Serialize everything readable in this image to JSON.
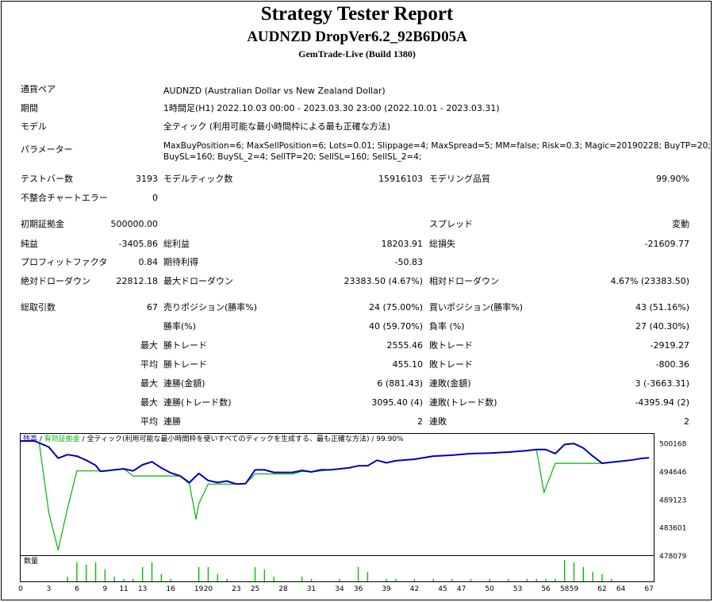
{
  "header": {
    "title": "Strategy Tester Report",
    "subtitle": "AUDNZD DropVer6.2_92B6D05A",
    "server": "GemTrade-Live (Build 1380)"
  },
  "info": {
    "symbol_label": "通貨ペア",
    "symbol_value": "AUDNZD (Australian Dollar vs New Zealand Dollar)",
    "period_label": "期間",
    "period_value": "1時間足(H1) 2022.10.03 00:00 - 2023.03.30 23:00 (2022.10.01 - 2023.03.31)",
    "model_label": "モデル",
    "model_value": "全ティック (利用可能な最小時間枠による最も正確な方法)",
    "params_label": "パラメーター",
    "params_line1": "MaxBuyPosition=6; MaxSellPosition=6; Lots=0.01; Slippage=4; MaxSpread=5; MM=false; Risk=0.3; Magic=20190228; BuyTP=20;",
    "params_line2": "BuySL=160; BuySL_2=4; SellTP=20; SellSL=160; SellSL_2=4;"
  },
  "stats": {
    "bars_label": "テストバー数",
    "bars_value": "3193",
    "ticks_label": "モデルティック数",
    "ticks_value": "15916103",
    "quality_label": "モデリング品質",
    "quality_value": "99.90%",
    "errors_label": "不整合チャートエラー",
    "errors_value": "0",
    "deposit_label": "初期証拠金",
    "deposit_value": "500000.00",
    "spread_label": "スプレッド",
    "spread_value": "変動",
    "net_label": "純益",
    "net_value": "-3405.86",
    "gross_profit_label": "総利益",
    "gross_profit_value": "18203.91",
    "gross_loss_label": "総損失",
    "gross_loss_value": "-21609.77",
    "pf_label": "プロフィットファクタ",
    "pf_value": "0.84",
    "expected_label": "期待利得",
    "expected_value": "-50.83",
    "abs_dd_label": "絶対ドローダウン",
    "abs_dd_value": "22812.18",
    "max_dd_label": "最大ドローダウン",
    "max_dd_value": "23383.50 (4.67%)",
    "rel_dd_label": "相対ドローダウン",
    "rel_dd_value": "4.67% (23383.50)",
    "trades_label": "総取引数",
    "trades_value": "67",
    "short_label": "売りポジション(勝率%)",
    "short_value": "24 (75.00%)",
    "long_label": "買いポジション(勝率%)",
    "long_value": "43 (51.16%)",
    "win_label": "勝率(%)",
    "win_value": "40 (59.70%)",
    "loss_label": "負率 (%)",
    "loss_value": "27 (40.30%)",
    "max_word": "最大",
    "avg_word": "平均",
    "largest_win_label": "勝トレード",
    "largest_win_value": "2555.46",
    "largest_loss_label": "敗トレード",
    "largest_loss_value": "-2919.27",
    "avg_win_label": "勝トレード",
    "avg_win_value": "455.10",
    "avg_loss_label": "敗トレード",
    "avg_loss_value": "-800.36",
    "max_consec_wins_label": "連勝(金額)",
    "max_consec_wins_value": "6 (881.43)",
    "max_consec_losses_label": "連敗(金額)",
    "max_consec_losses_value": "3 (-3663.31)",
    "max_consec_profit_label": "連勝(トレード数)",
    "max_consec_profit_value": "3095.40 (4)",
    "max_consec_loss_label": "連敗(トレード数)",
    "max_consec_loss_value": "-4395.94 (2)",
    "avg_consec_wins_label": "連勝",
    "avg_consec_wins_value": "2",
    "avg_consec_losses_label": "連敗",
    "avg_consec_losses_value": "2"
  },
  "chart_legend": {
    "balance": "残高",
    "sep1": " / ",
    "equity": "有効証拠金",
    "sep2": " / ",
    "desc": "全ティック(利用可能な最小時間枠を使いすべてのティックを生成する、最も正確な方法)",
    "sep3": " / ",
    "quality": "99.90%"
  },
  "volume_label": "数量",
  "colors": {
    "balance": "#0000b4",
    "equity": "#00b400",
    "volume": "#00c000"
  },
  "chart_data": {
    "type": "line",
    "x_ticks": [
      0,
      3,
      6,
      9,
      11,
      13,
      16,
      19,
      20,
      23,
      25,
      28,
      31,
      34,
      36,
      39,
      42,
      45,
      47,
      50,
      53,
      56,
      58,
      59,
      62,
      64,
      67
    ],
    "y_ticks": [
      500168,
      494646,
      489123,
      483601,
      478079
    ],
    "ylim": [
      478079,
      502000
    ],
    "xlim": [
      0,
      67.5
    ],
    "series": [
      {
        "name": "残高",
        "x": [
          0,
          1.5,
          3,
          4,
          5,
          6,
          7,
          8,
          8.5,
          9,
          10,
          11,
          12,
          13,
          14,
          15,
          16,
          17,
          18,
          19,
          20,
          21,
          22,
          23,
          24,
          25,
          26,
          27,
          28,
          29,
          30,
          31,
          32,
          33,
          34,
          35,
          36,
          37,
          38,
          39,
          40,
          42,
          44,
          46,
          48,
          50,
          52,
          54,
          55,
          56,
          57,
          58,
          59,
          60,
          61,
          62,
          63,
          64,
          65,
          66,
          67
        ],
        "y": [
          500600,
          500600,
          499400,
          497200,
          497900,
          497600,
          496800,
          495800,
          494600,
          494700,
          494900,
          495100,
          494700,
          495900,
          496500,
          495300,
          494300,
          493700,
          492400,
          494200,
          492800,
          492400,
          492700,
          492100,
          492200,
          494900,
          494900,
          494400,
          494400,
          494400,
          494800,
          494500,
          494900,
          494900,
          495100,
          495300,
          495700,
          495700,
          496800,
          496300,
          496700,
          497000,
          497600,
          497800,
          498100,
          498200,
          498400,
          498700,
          498900,
          498900,
          498100,
          499900,
          500100,
          499200,
          497600,
          496200,
          496400,
          496600,
          496800,
          497100,
          497300
        ]
      },
      {
        "name": "有効証拠金",
        "x": [
          0,
          1.5,
          2,
          3,
          4,
          5,
          6,
          7,
          8,
          8.5,
          9,
          10,
          11,
          12,
          13,
          14,
          15,
          16,
          17,
          18,
          18.7,
          19,
          20,
          21,
          22,
          23,
          24,
          25,
          26,
          27,
          28,
          29,
          30,
          31,
          32,
          33,
          34,
          35,
          36,
          37,
          38,
          39,
          40,
          42,
          44,
          46,
          48,
          50,
          52,
          54,
          55,
          55.8,
          56,
          57,
          58,
          59,
          60,
          61,
          62,
          63,
          64,
          65,
          66,
          67
        ],
        "y": [
          500600,
          500600,
          500100,
          486500,
          479100,
          487300,
          494700,
          494700,
          494700,
          494700,
          494700,
          494900,
          495100,
          493700,
          493700,
          493700,
          493700,
          493700,
          493700,
          492100,
          485200,
          488200,
          492100,
          492100,
          492100,
          492100,
          492200,
          494100,
          494100,
          494100,
          494100,
          494100,
          494600,
          494500,
          494700,
          494900,
          495100,
          495300,
          495700,
          495700,
          496800,
          496300,
          496700,
          497000,
          497600,
          497800,
          498100,
          498200,
          498400,
          498700,
          498900,
          490400,
          491400,
          496200,
          496200,
          496200,
          496200,
          496200,
          496200,
          496400,
          496600,
          496800,
          497100,
          497300
        ]
      }
    ],
    "volume": {
      "x": [
        5,
        6,
        7,
        8,
        9,
        10,
        11,
        12,
        13,
        14,
        15,
        16,
        19,
        20,
        21,
        22,
        25,
        26,
        27,
        30,
        31,
        34,
        36,
        37,
        39,
        40,
        42,
        44,
        46,
        48,
        50,
        52,
        54,
        55,
        56,
        57,
        58,
        59,
        60,
        61,
        62,
        63
      ],
      "values": [
        2,
        8,
        7,
        8,
        5,
        2,
        1,
        1,
        6,
        8,
        3,
        1,
        6,
        6,
        3,
        1,
        6,
        5,
        2,
        2,
        1,
        1,
        6,
        4,
        1,
        1,
        1,
        1,
        1,
        1,
        1,
        1,
        1,
        1,
        1,
        1,
        9,
        8,
        6,
        4,
        3,
        1
      ]
    }
  }
}
